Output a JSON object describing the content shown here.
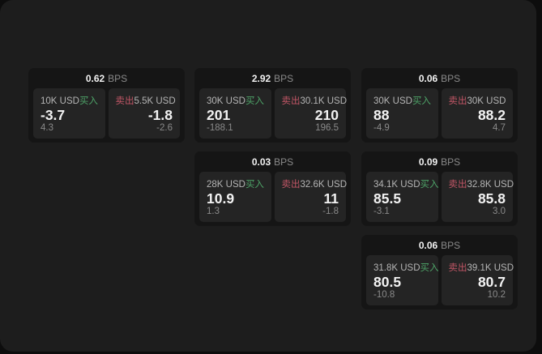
{
  "labels": {
    "bps_unit": "BPS",
    "buy": "买入",
    "sell": "卖出"
  },
  "colors": {
    "bg_outer": "#0d0d0d",
    "bg_panel": "#1d1d1d",
    "bg_card": "#151515",
    "bg_tile": "#242424",
    "text_primary": "#f2f2f2",
    "text_secondary": "#b5b5b5",
    "text_muted": "#8a8a8a",
    "buy_green": "#4ea468",
    "sell_red": "#c25666"
  },
  "cards": [
    {
      "col": 1,
      "row": 1,
      "bps": "0.62",
      "buy": {
        "amount": "10K USD",
        "price": "-3.7",
        "delta": "4.3"
      },
      "sell": {
        "amount": "5.5K USD",
        "price": "-1.8",
        "delta": "-2.6"
      }
    },
    {
      "col": 2,
      "row": 1,
      "bps": "2.92",
      "buy": {
        "amount": "30K USD",
        "price": "201",
        "delta": "-188.1"
      },
      "sell": {
        "amount": "30.1K USD",
        "price": "210",
        "delta": "196.5"
      }
    },
    {
      "col": 3,
      "row": 1,
      "bps": "0.06",
      "buy": {
        "amount": "30K USD",
        "price": "88",
        "delta": "-4.9"
      },
      "sell": {
        "amount": "30K USD",
        "price": "88.2",
        "delta": "4.7"
      }
    },
    {
      "col": 2,
      "row": 2,
      "bps": "0.03",
      "buy": {
        "amount": "28K USD",
        "price": "10.9",
        "delta": "1.3"
      },
      "sell": {
        "amount": "32.6K USD",
        "price": "11",
        "delta": "-1.8"
      }
    },
    {
      "col": 3,
      "row": 2,
      "bps": "0.09",
      "buy": {
        "amount": "34.1K USD",
        "price": "85.5",
        "delta": "-3.1"
      },
      "sell": {
        "amount": "32.8K USD",
        "price": "85.8",
        "delta": "3.0"
      }
    },
    {
      "col": 3,
      "row": 3,
      "bps": "0.06",
      "buy": {
        "amount": "31.8K USD",
        "price": "80.5",
        "delta": "-10.8"
      },
      "sell": {
        "amount": "39.1K USD",
        "price": "80.7",
        "delta": "10.2"
      }
    }
  ]
}
